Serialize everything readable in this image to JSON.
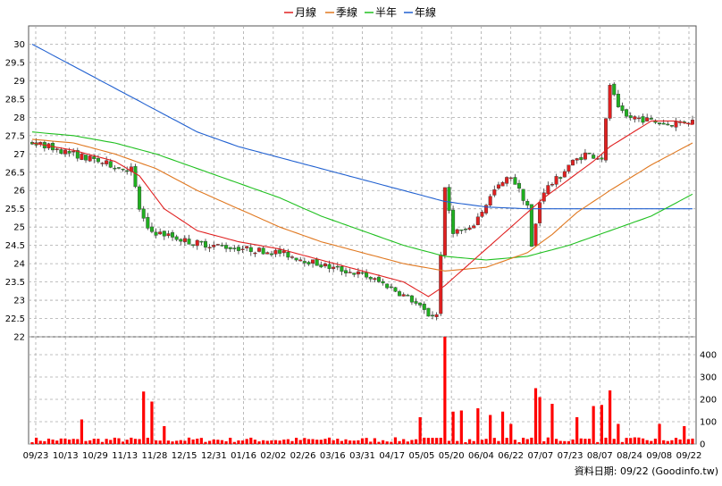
{
  "chart_data": {
    "type": "candlestick",
    "legend": [
      "月線",
      "季線",
      "半年",
      "年線"
    ],
    "legend_colors": [
      "#e02020",
      "#e07820",
      "#20c020",
      "#2060d0"
    ],
    "up_color": "#e02020",
    "down_color": "#20b020",
    "ma_colors": {
      "month": "#e02020",
      "quarter": "#e07820",
      "half": "#20c020",
      "year": "#2060d0"
    },
    "price_axis": {
      "ticks": [
        "30",
        "29.5",
        "29",
        "28.5",
        "28",
        "27.5",
        "27",
        "26.5",
        "26",
        "25.5",
        "25",
        "24.5",
        "24",
        "23.5",
        "23",
        "22.5",
        "22"
      ],
      "range": [
        22,
        30.5
      ]
    },
    "volume_axis": {
      "ticks": [
        "400",
        "300",
        "200",
        "100",
        "0"
      ],
      "range": [
        0,
        480
      ]
    },
    "x_ticks": [
      "09/23",
      "10/13",
      "10/29",
      "11/13",
      "11/28",
      "12/15",
      "12/31",
      "01/16",
      "02/02",
      "02/26",
      "03/16",
      "03/31",
      "04/17",
      "05/05",
      "05/20",
      "06/04",
      "06/22",
      "07/07",
      "07/23",
      "08/07",
      "08/24",
      "09/08",
      "09/22"
    ],
    "close_points": [
      {
        "t": 0,
        "v": 27.3
      },
      {
        "t": 2,
        "v": 27.2
      },
      {
        "t": 5,
        "v": 27.0
      },
      {
        "t": 8,
        "v": 26.8
      },
      {
        "t": 11,
        "v": 26.6
      },
      {
        "t": 12,
        "v": 26.6
      },
      {
        "t": 13,
        "v": 25.5
      },
      {
        "t": 14,
        "v": 24.9
      },
      {
        "t": 16,
        "v": 24.8
      },
      {
        "t": 19,
        "v": 24.6
      },
      {
        "t": 22,
        "v": 24.5
      },
      {
        "t": 26,
        "v": 24.4
      },
      {
        "t": 30,
        "v": 24.3
      },
      {
        "t": 33,
        "v": 24.1
      },
      {
        "t": 36,
        "v": 23.9
      },
      {
        "t": 40,
        "v": 23.7
      },
      {
        "t": 43,
        "v": 23.4
      },
      {
        "t": 46,
        "v": 23.0
      },
      {
        "t": 48,
        "v": 22.6
      },
      {
        "t": 49,
        "v": 22.6
      },
      {
        "t": 50,
        "v": 26.0
      },
      {
        "t": 51,
        "v": 24.9
      },
      {
        "t": 53,
        "v": 24.9
      },
      {
        "t": 56,
        "v": 26.0
      },
      {
        "t": 58,
        "v": 26.4
      },
      {
        "t": 60,
        "v": 25.6
      },
      {
        "t": 60.6,
        "v": 24.2
      },
      {
        "t": 61.2,
        "v": 25.5
      },
      {
        "t": 62,
        "v": 26.0
      },
      {
        "t": 64,
        "v": 26.4
      },
      {
        "t": 65,
        "v": 26.7
      },
      {
        "t": 67,
        "v": 27.0
      },
      {
        "t": 69,
        "v": 26.9
      },
      {
        "t": 70,
        "v": 28.9
      },
      {
        "t": 71,
        "v": 28.2
      },
      {
        "t": 72,
        "v": 28.0
      },
      {
        "t": 73,
        "v": 28.0
      },
      {
        "t": 75,
        "v": 27.9
      },
      {
        "t": 77,
        "v": 27.8
      },
      {
        "t": 79,
        "v": 27.9
      },
      {
        "t": 80,
        "v": 27.9
      }
    ],
    "ma_month": [
      {
        "t": 0,
        "v": 27.3
      },
      {
        "t": 5,
        "v": 27.1
      },
      {
        "t": 10,
        "v": 26.8
      },
      {
        "t": 13,
        "v": 26.4
      },
      {
        "t": 16,
        "v": 25.5
      },
      {
        "t": 20,
        "v": 24.9
      },
      {
        "t": 25,
        "v": 24.6
      },
      {
        "t": 30,
        "v": 24.4
      },
      {
        "t": 35,
        "v": 24.1
      },
      {
        "t": 40,
        "v": 23.8
      },
      {
        "t": 45,
        "v": 23.5
      },
      {
        "t": 48,
        "v": 23.1
      },
      {
        "t": 50,
        "v": 23.4
      },
      {
        "t": 55,
        "v": 24.4
      },
      {
        "t": 60,
        "v": 25.4
      },
      {
        "t": 62,
        "v": 25.8
      },
      {
        "t": 65,
        "v": 26.3
      },
      {
        "t": 68,
        "v": 26.8
      },
      {
        "t": 70,
        "v": 27.2
      },
      {
        "t": 75,
        "v": 27.9
      },
      {
        "t": 78,
        "v": 27.9
      },
      {
        "t": 80,
        "v": 27.8
      }
    ],
    "ma_quarter": [
      {
        "t": 0,
        "v": 27.4
      },
      {
        "t": 5,
        "v": 27.3
      },
      {
        "t": 10,
        "v": 27.0
      },
      {
        "t": 15,
        "v": 26.6
      },
      {
        "t": 20,
        "v": 26.0
      },
      {
        "t": 25,
        "v": 25.5
      },
      {
        "t": 30,
        "v": 25.0
      },
      {
        "t": 35,
        "v": 24.6
      },
      {
        "t": 40,
        "v": 24.3
      },
      {
        "t": 45,
        "v": 24.0
      },
      {
        "t": 50,
        "v": 23.8
      },
      {
        "t": 55,
        "v": 23.9
      },
      {
        "t": 60,
        "v": 24.3
      },
      {
        "t": 63,
        "v": 24.8
      },
      {
        "t": 66,
        "v": 25.4
      },
      {
        "t": 70,
        "v": 26.0
      },
      {
        "t": 75,
        "v": 26.7
      },
      {
        "t": 80,
        "v": 27.3
      }
    ],
    "ma_half": [
      {
        "t": 0,
        "v": 27.6
      },
      {
        "t": 5,
        "v": 27.5
      },
      {
        "t": 10,
        "v": 27.3
      },
      {
        "t": 15,
        "v": 27.0
      },
      {
        "t": 20,
        "v": 26.6
      },
      {
        "t": 25,
        "v": 26.2
      },
      {
        "t": 30,
        "v": 25.8
      },
      {
        "t": 35,
        "v": 25.3
      },
      {
        "t": 40,
        "v": 24.9
      },
      {
        "t": 45,
        "v": 24.5
      },
      {
        "t": 50,
        "v": 24.2
      },
      {
        "t": 55,
        "v": 24.1
      },
      {
        "t": 60,
        "v": 24.2
      },
      {
        "t": 65,
        "v": 24.5
      },
      {
        "t": 70,
        "v": 24.9
      },
      {
        "t": 75,
        "v": 25.3
      },
      {
        "t": 80,
        "v": 25.9
      }
    ],
    "ma_year": [
      {
        "t": 0,
        "v": 30.0
      },
      {
        "t": 5,
        "v": 29.4
      },
      {
        "t": 10,
        "v": 28.8
      },
      {
        "t": 15,
        "v": 28.2
      },
      {
        "t": 20,
        "v": 27.6
      },
      {
        "t": 25,
        "v": 27.2
      },
      {
        "t": 30,
        "v": 26.9
      },
      {
        "t": 35,
        "v": 26.6
      },
      {
        "t": 40,
        "v": 26.3
      },
      {
        "t": 45,
        "v": 26.0
      },
      {
        "t": 50,
        "v": 25.7
      },
      {
        "t": 55,
        "v": 25.55
      },
      {
        "t": 60,
        "v": 25.5
      },
      {
        "t": 65,
        "v": 25.5
      },
      {
        "t": 70,
        "v": 25.5
      },
      {
        "t": 80,
        "v": 25.5
      }
    ],
    "volume_spikes": [
      {
        "t": 6,
        "v": 110
      },
      {
        "t": 13.5,
        "v": 235
      },
      {
        "t": 14.5,
        "v": 190
      },
      {
        "t": 16,
        "v": 80
      },
      {
        "t": 47,
        "v": 120
      },
      {
        "t": 50,
        "v": 480
      },
      {
        "t": 51,
        "v": 145
      },
      {
        "t": 52,
        "v": 150
      },
      {
        "t": 54,
        "v": 160
      },
      {
        "t": 55.5,
        "v": 130
      },
      {
        "t": 57,
        "v": 145
      },
      {
        "t": 58,
        "v": 90
      },
      {
        "t": 61,
        "v": 250
      },
      {
        "t": 61.5,
        "v": 210
      },
      {
        "t": 63,
        "v": 180
      },
      {
        "t": 66,
        "v": 120
      },
      {
        "t": 68,
        "v": 170
      },
      {
        "t": 69,
        "v": 175
      },
      {
        "t": 70,
        "v": 240
      },
      {
        "t": 71,
        "v": 90
      },
      {
        "t": 76,
        "v": 90
      },
      {
        "t": 79,
        "v": 80
      }
    ],
    "credit": "資料日期: 09/22  (Goodinfo.tw)"
  }
}
